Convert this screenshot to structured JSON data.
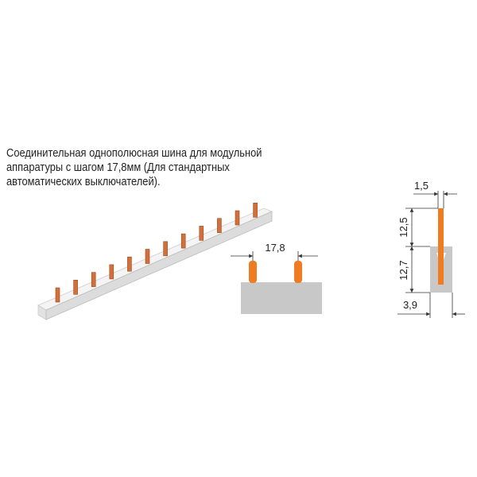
{
  "description": [
    "Соединительная однополюсная шина для модульной",
    "аппаратуры с шагом 17,8мм (Для стандартных",
    "автоматических выключателей)."
  ],
  "dimensions": {
    "pitch": "17,8",
    "pin_thickness": "1,5",
    "pin_height": "12,5",
    "body_height": "12,7",
    "body_width": "3,9"
  }
}
